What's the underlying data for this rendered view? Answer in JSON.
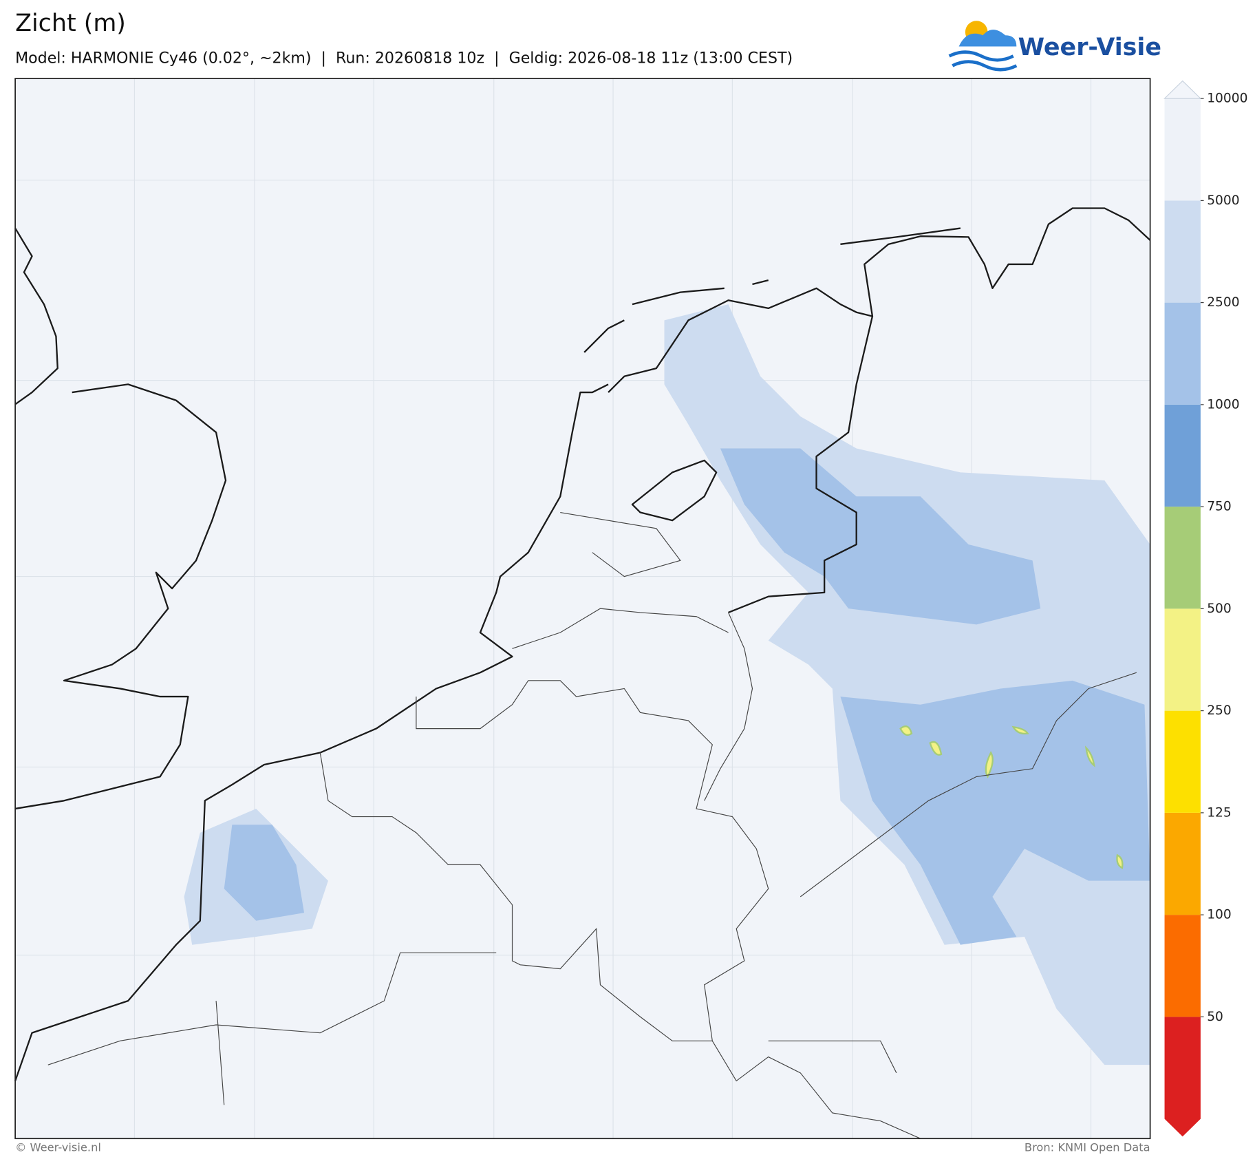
{
  "header": {
    "title": "Zicht (m)",
    "subtitle": "Model: HARMONIE Cy46 (0.02°, ~2km)  |  Run: 20260818 10z  |  Geldig: 2026-08-18 11z (13:00 CEST)",
    "logo": "Weer-Visie"
  },
  "colorbar": {
    "ticks": [
      50,
      100,
      125,
      250,
      500,
      750,
      1000,
      2500,
      5000,
      10000
    ],
    "colors": [
      "#dc2020",
      "#fb6c00",
      "#fba800",
      "#fde000",
      "#f3f285",
      "#a6cc77",
      "#6fa0d8",
      "#a4c2e8",
      "#cddcf0",
      "#eef2f8",
      "#f2f5fa"
    ]
  },
  "footer": {
    "copyright": "© Weer-visie.nl",
    "source": "Bron: KNMI Open Data"
  }
}
